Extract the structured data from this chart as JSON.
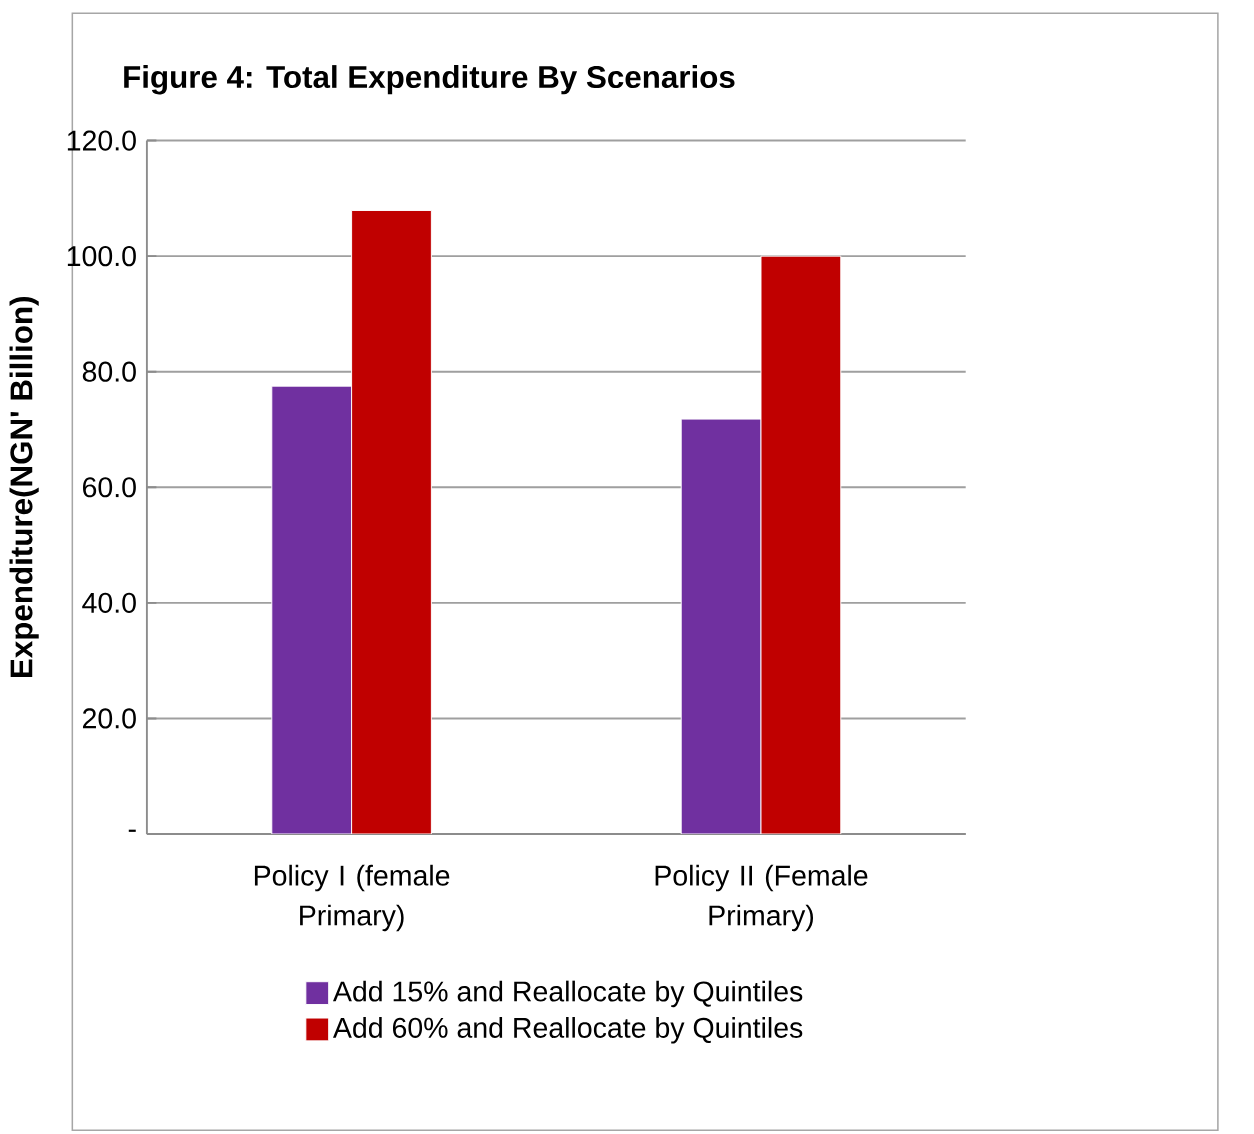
{
  "chart_data": {
    "type": "bar",
    "title": "Figure 4: Total Expenditure By Scenarios",
    "ylabel": "Expenditure(NGN' Billion)",
    "categories": [
      "Policy I (female Primary)",
      "Policy II (Female Primary)"
    ],
    "series": [
      {
        "name": "Add 15% and Reallocate by Quintiles",
        "color": "#7030a0",
        "values": [
          77.5,
          71.8
        ]
      },
      {
        "name": "Add 60% and Reallocate by Quintiles",
        "color": "#c00000",
        "values": [
          107.9,
          100.0
        ]
      }
    ],
    "ylim": [
      0,
      120
    ],
    "yticks": [
      {
        "value": 0,
        "label": "-"
      },
      {
        "value": 20,
        "label": "20.0"
      },
      {
        "value": 40,
        "label": "40.0"
      },
      {
        "value": 60,
        "label": "60.0"
      },
      {
        "value": 80,
        "label": "80.0"
      },
      {
        "value": 100,
        "label": "100.0"
      },
      {
        "value": 120,
        "label": "120.0"
      }
    ],
    "grid": "y",
    "legend": "bottom"
  }
}
